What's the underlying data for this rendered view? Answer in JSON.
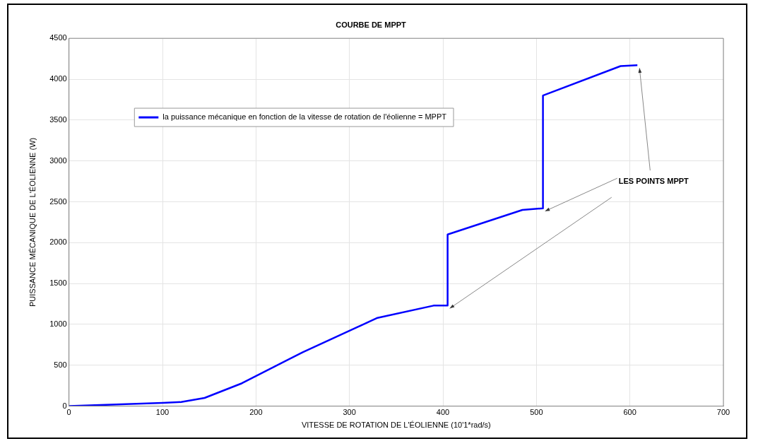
{
  "chart_data": {
    "type": "line",
    "title": "COURBE DE MPPT",
    "xlabel": "VITESSE DE ROTATION DE L'ÉOLIENNE (10'1*rad/s)",
    "ylabel": "PUISSANCE MÉCANIQUE DE L'ÉOLIENNE (W)",
    "xlim": [
      0,
      700
    ],
    "xticks": [
      0,
      100,
      200,
      300,
      400,
      500,
      600,
      700
    ],
    "ylim": [
      0,
      4500
    ],
    "yticks": [
      0,
      500,
      1000,
      1500,
      2000,
      2500,
      3000,
      3500,
      4000,
      4500
    ],
    "grid": true,
    "legend": "top left",
    "marker": "none",
    "line_style": "solid",
    "series": [
      {
        "name": "la puissance mécanique en fonction de la vitesse de rotation de l'éolienne = MPPT",
        "color": "#0000ff",
        "x": [
          0,
          50,
          100,
          120,
          145,
          185,
          250,
          330,
          390,
          405,
          405,
          485,
          507,
          507,
          590,
          608
        ],
        "values": [
          0,
          20,
          40,
          50,
          100,
          280,
          660,
          1080,
          1230,
          1230,
          2100,
          2400,
          2420,
          3800,
          4160,
          4170
        ]
      }
    ],
    "annotations": [
      {
        "text": "LES POINTS MPPT",
        "x": 507,
        "y": 2420
      }
    ]
  }
}
